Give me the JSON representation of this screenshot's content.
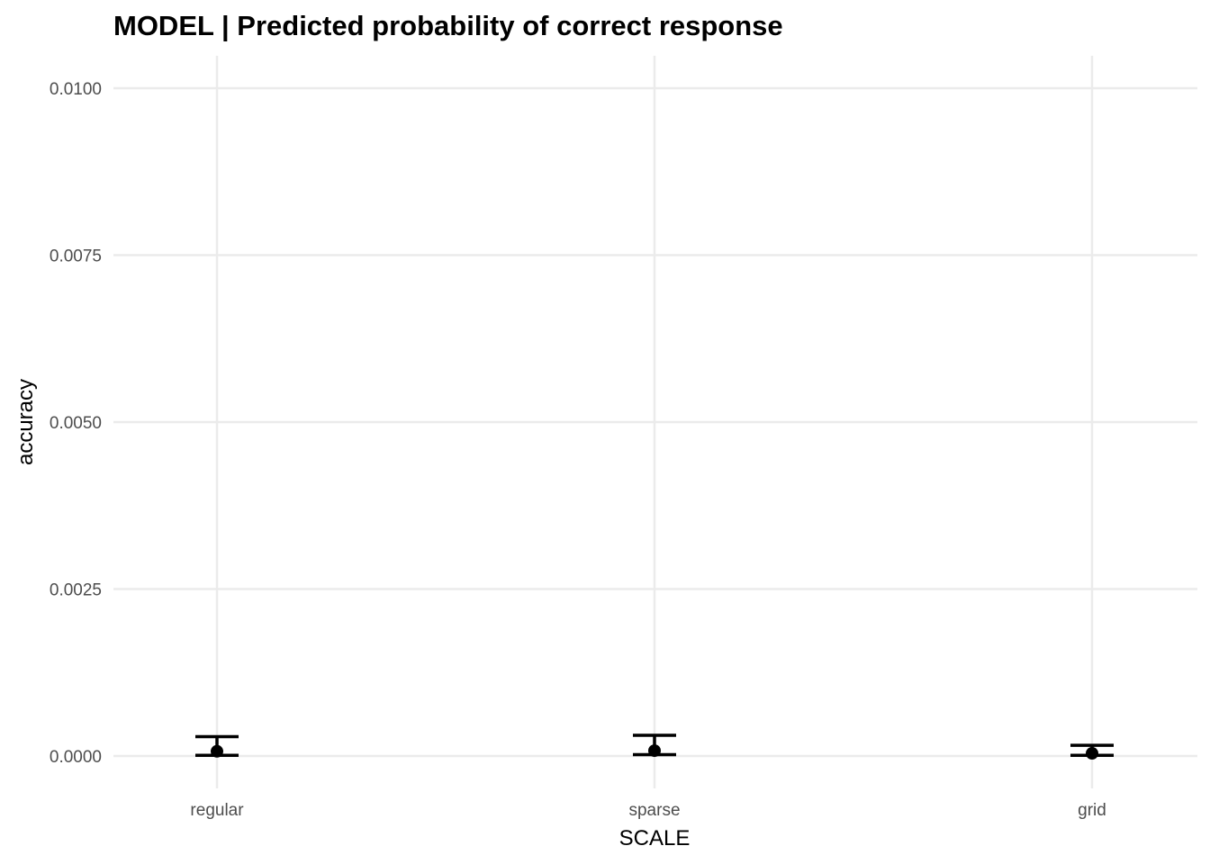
{
  "chart_data": {
    "type": "scatter",
    "title": "MODEL | Predicted probability of correct response",
    "xlabel": "SCALE",
    "ylabel": "accuracy",
    "categories": [
      "regular",
      "sparse",
      "grid"
    ],
    "series": [
      {
        "values": [
          7e-05,
          8e-05,
          4e-05
        ],
        "lower": [
          1e-05,
          2e-05,
          1e-05
        ],
        "upper": [
          0.00029,
          0.00031,
          0.00016
        ]
      }
    ],
    "ylim": [
      0,
      0.01
    ],
    "yticks": [
      "0.0000",
      "0.0025",
      "0.0050",
      "0.0075",
      "0.0100"
    ],
    "grid": true,
    "legend": "none",
    "colors": {
      "point": "#000000",
      "errorbar": "#000000",
      "grid": "#ebebeb"
    }
  }
}
